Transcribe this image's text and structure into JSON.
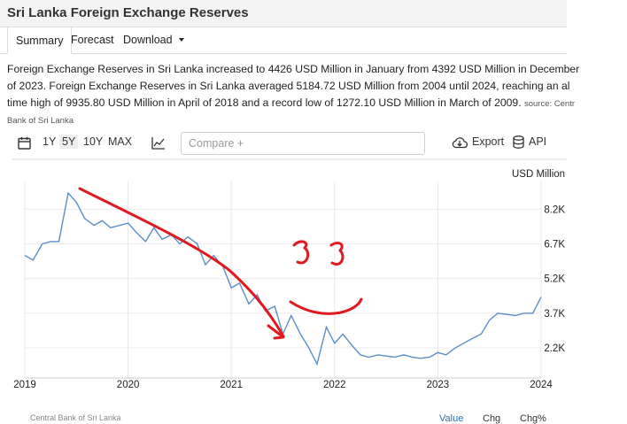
{
  "header": {
    "title": "Sri Lanka Foreign Exchange Reserves"
  },
  "tabs": [
    {
      "label": "Summary"
    },
    {
      "label": "Forecast"
    },
    {
      "label": "Download"
    }
  ],
  "description": {
    "line1": "Foreign Exchange Reserves in Sri Lanka increased to 4426 USD Million in January from 4392 USD Million in December",
    "line2": "of 2023. Foreign Exchange Reserves in Sri Lanka averaged 5184.72 USD Million from 2004 until 2024, reaching an al",
    "line3": "time high of 9935.80 USD Million in April of 2018 and a record low of 1272.10 USD Million in March of 2009.",
    "source_prefix": "source: Centr",
    "source_line": "Bank of Sri Lanka"
  },
  "toolbar": {
    "ranges": [
      "1Y",
      "5Y",
      "10Y",
      "MAX"
    ],
    "active_range": "5Y",
    "compare_placeholder": "Compare +",
    "export_label": "Export",
    "api_label": "API",
    "icons": [
      "calendar-icon",
      "line-chart-icon",
      "cloud-download-icon",
      "database-icon"
    ]
  },
  "chart_data": {
    "type": "line",
    "unit": "USD Million",
    "x_ticks": [
      "2019",
      "2020",
      "2021",
      "2022",
      "2023",
      "2024"
    ],
    "y_ticks": [
      "8.2K",
      "6.7K",
      "5.2K",
      "3.7K",
      "2.2K"
    ],
    "ylim": [
      900,
      9400
    ],
    "grid": true,
    "x": [
      2019.0,
      2019.08,
      2019.17,
      2019.25,
      2019.33,
      2019.42,
      2019.5,
      2019.58,
      2019.67,
      2019.75,
      2019.83,
      2019.92,
      2020.0,
      2020.08,
      2020.17,
      2020.25,
      2020.33,
      2020.42,
      2020.5,
      2020.58,
      2020.67,
      2020.75,
      2020.83,
      2020.92,
      2021.0,
      2021.08,
      2021.17,
      2021.25,
      2021.33,
      2021.42,
      2021.5,
      2021.58,
      2021.67,
      2021.75,
      2021.83,
      2021.92,
      2022.0,
      2022.08,
      2022.17,
      2022.25,
      2022.33,
      2022.42,
      2022.5,
      2022.58,
      2022.67,
      2022.75,
      2022.83,
      2022.92,
      2023.0,
      2023.08,
      2023.17,
      2023.25,
      2023.33,
      2023.42,
      2023.5,
      2023.58,
      2023.67,
      2023.75,
      2023.83,
      2023.92,
      2024.0
    ],
    "values": [
      6200,
      6000,
      6700,
      6800,
      6800,
      8900,
      8500,
      7800,
      7500,
      7700,
      7400,
      7500,
      7600,
      7200,
      6800,
      7400,
      6900,
      7100,
      6700,
      7000,
      6700,
      5800,
      6200,
      5700,
      4800,
      5000,
      4100,
      4500,
      3800,
      4000,
      2800,
      3600,
      2800,
      2200,
      1500,
      3100,
      2400,
      2800,
      2300,
      1900,
      1800,
      1900,
      1850,
      1800,
      1900,
      1800,
      1750,
      1800,
      2000,
      1900,
      2200,
      2400,
      2600,
      2800,
      3400,
      3700,
      3650,
      3600,
      3700,
      3700,
      4400
    ],
    "annotation_color": "#e0191e",
    "line_color": "#5b8ec6"
  },
  "footer": {
    "source": "Central Bank of Sri Lanka",
    "buttons": [
      "Value",
      "Chg",
      "Chg%"
    ]
  }
}
